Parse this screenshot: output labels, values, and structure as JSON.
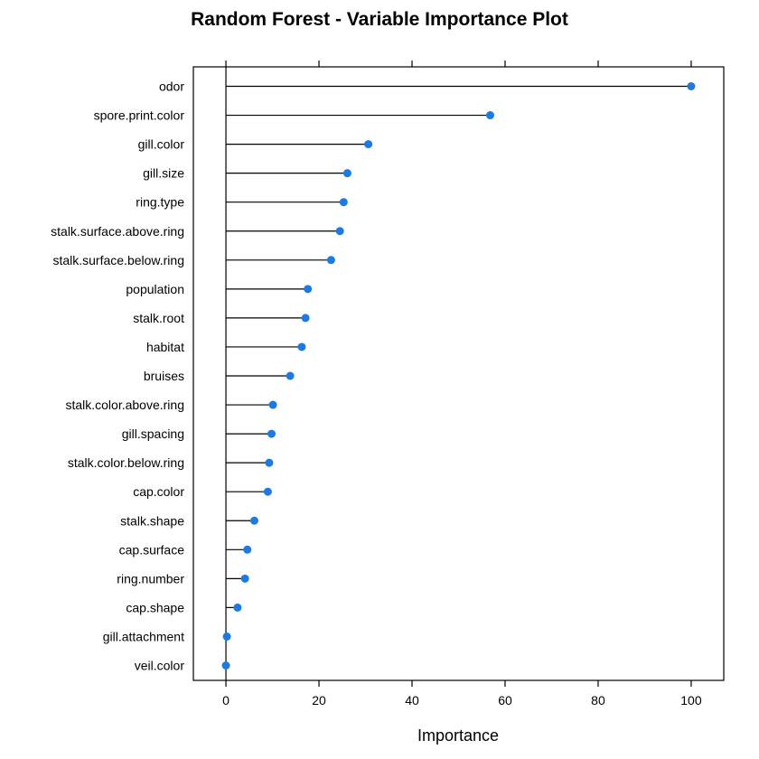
{
  "chart_data": {
    "type": "dotplot",
    "title": "Random Forest - Variable Importance Plot",
    "xlabel": "Importance",
    "ylabel": "",
    "xlim": [
      -7,
      107
    ],
    "xticks": [
      0,
      20,
      40,
      60,
      80,
      100
    ],
    "grid": false,
    "marker_color": "#1f7ae0",
    "categories": [
      "odor",
      "spore.print.color",
      "gill.color",
      "gill.size",
      "ring.type",
      "stalk.surface.above.ring",
      "stalk.surface.below.ring",
      "population",
      "stalk.root",
      "habitat",
      "bruises",
      "stalk.color.above.ring",
      "gill.spacing",
      "stalk.color.below.ring",
      "cap.color",
      "stalk.shape",
      "cap.surface",
      "ring.number",
      "cap.shape",
      "gill.attachment",
      "veil.color"
    ],
    "values": [
      100,
      56.8,
      30.6,
      26.1,
      25.3,
      24.5,
      22.6,
      17.6,
      17.1,
      16.3,
      13.8,
      10.1,
      9.8,
      9.3,
      9.0,
      6.1,
      4.6,
      4.1,
      2.5,
      0.2,
      0
    ]
  }
}
